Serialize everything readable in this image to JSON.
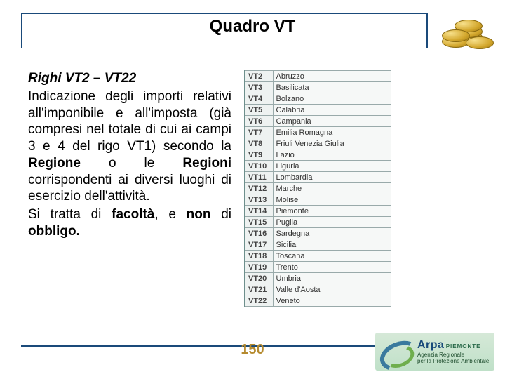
{
  "frame_border_color": "#1a4a7a",
  "title": "Quadro VT",
  "body": {
    "heading": "Righi VT2 – VT22",
    "para1_parts": [
      "Indicazione degli importi relativi all'imponibile e all'imposta (già compresi nel totale di cui ai campi 3 e 4 del rigo VT1) secondo la ",
      "Regione",
      " o le ",
      "Regioni",
      " corrispondenti ai diversi luoghi di esercizio dell'attività."
    ],
    "para2_parts": [
      "Si tratta di ",
      "facoltà",
      ", e ",
      "non",
      " di ",
      "obbligo."
    ]
  },
  "regions": [
    {
      "code": "VT2",
      "name": "Abruzzo"
    },
    {
      "code": "VT3",
      "name": "Basilicata"
    },
    {
      "code": "VT4",
      "name": "Bolzano"
    },
    {
      "code": "VT5",
      "name": "Calabria"
    },
    {
      "code": "VT6",
      "name": "Campania"
    },
    {
      "code": "VT7",
      "name": "Emilia Romagna"
    },
    {
      "code": "VT8",
      "name": "Friuli Venezia Giulia"
    },
    {
      "code": "VT9",
      "name": "Lazio"
    },
    {
      "code": "VT10",
      "name": "Liguria"
    },
    {
      "code": "VT11",
      "name": "Lombardia"
    },
    {
      "code": "VT12",
      "name": "Marche"
    },
    {
      "code": "VT13",
      "name": "Molise"
    },
    {
      "code": "VT14",
      "name": "Piemonte"
    },
    {
      "code": "VT15",
      "name": "Puglia"
    },
    {
      "code": "VT16",
      "name": "Sardegna"
    },
    {
      "code": "VT17",
      "name": "Sicilia"
    },
    {
      "code": "VT18",
      "name": "Toscana"
    },
    {
      "code": "VT19",
      "name": "Trento"
    },
    {
      "code": "VT20",
      "name": "Umbria"
    },
    {
      "code": "VT21",
      "name": "Valle d'Aosta"
    },
    {
      "code": "VT22",
      "name": "Veneto"
    }
  ],
  "page_number_center": "150",
  "page_number_right": "150",
  "logo": {
    "brand": "Arpa",
    "region": "PIEMONTE",
    "subtitle1": "Agenzia Regionale",
    "subtitle2": "per la Protezione Ambientale"
  }
}
